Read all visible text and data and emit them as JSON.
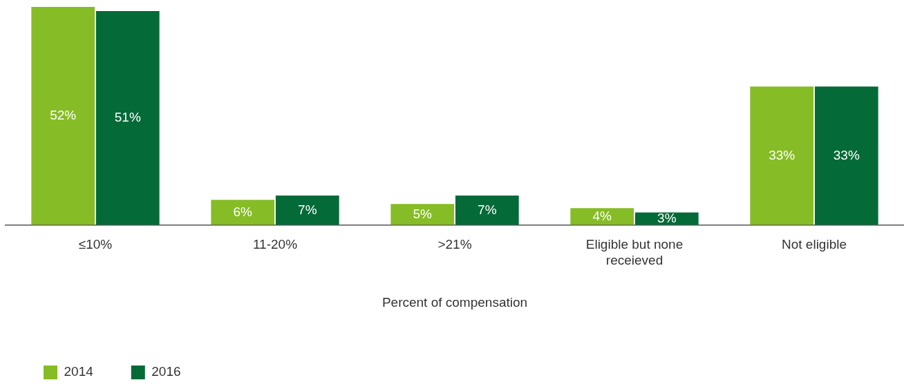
{
  "chart_data": {
    "type": "bar",
    "xlabel": "Percent of compensation",
    "categories": [
      "≤10%",
      "11-20%",
      ">21%",
      "Eligible but none receieved",
      "Not eligible"
    ],
    "series": [
      {
        "name": "2014",
        "color": "#86bc25",
        "values": [
          52,
          6,
          5,
          4,
          33
        ],
        "value_labels": [
          "52%",
          "6%",
          "5%",
          "4%",
          "33%"
        ]
      },
      {
        "name": "2016",
        "color": "#046a38",
        "values": [
          51,
          7,
          7,
          3,
          33
        ],
        "value_labels": [
          "51%",
          "7%",
          "7%",
          "3%",
          "33%"
        ]
      }
    ],
    "grid": false,
    "legend": "bottom left"
  }
}
